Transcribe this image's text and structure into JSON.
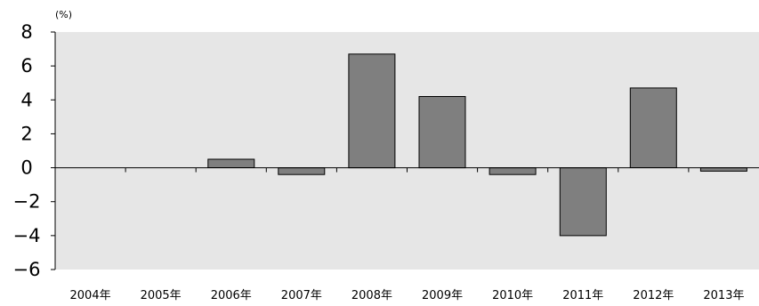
{
  "chart_data": {
    "type": "bar",
    "unit_label": "(%)",
    "categories": [
      "2004年",
      "2005年",
      "2006年",
      "2007年",
      "2008年",
      "2009年",
      "2010年",
      "2011年",
      "2012年",
      "2013年"
    ],
    "values": [
      0,
      0,
      0.5,
      -0.4,
      6.7,
      4.2,
      -0.4,
      -4.0,
      4.7,
      -0.2
    ],
    "ylim": [
      -6,
      8
    ],
    "yticks": [
      8,
      6,
      4,
      2,
      0,
      -2,
      -4,
      -6
    ],
    "ytick_labels": [
      "8",
      "6",
      "4",
      "2",
      "0",
      "−2",
      "−4",
      "−6"
    ],
    "colors": {
      "plot_background": "#e6e6e6",
      "bar_fill": "#7f7f7f",
      "bar_stroke": "#000000",
      "axis": "#000000"
    }
  }
}
